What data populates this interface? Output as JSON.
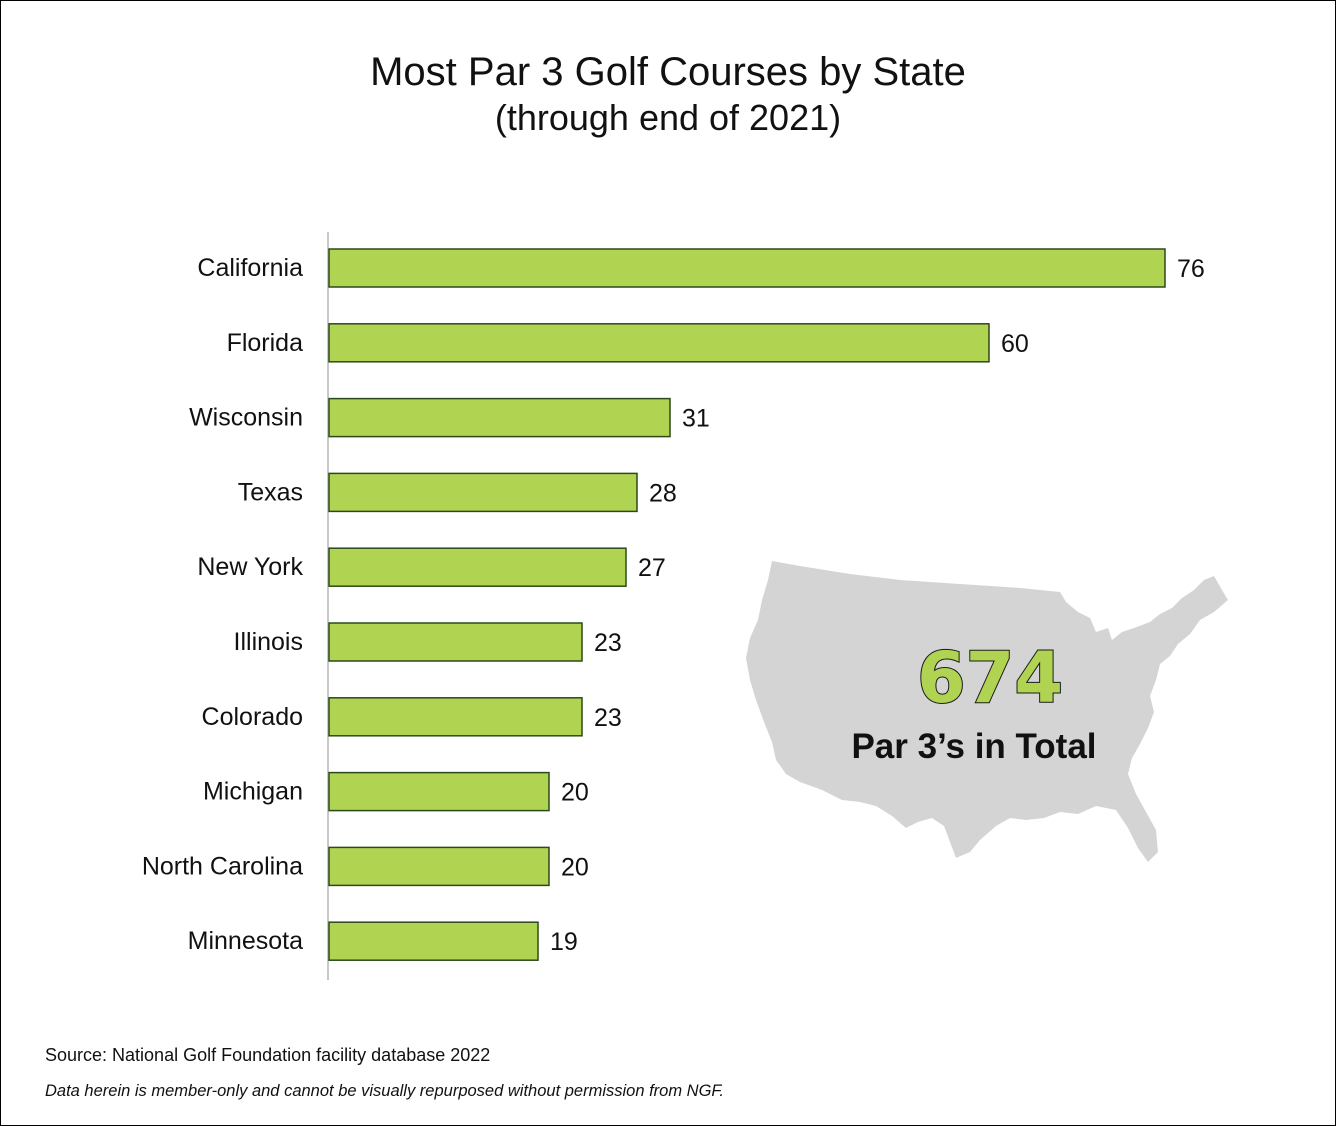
{
  "chart_data": {
    "type": "bar",
    "orientation": "horizontal",
    "title": "Most Par 3 Golf Courses by State",
    "subtitle": "(through end of 2021)",
    "categories": [
      "California",
      "Florida",
      "Wisconsin",
      "Texas",
      "New York",
      "Illinois",
      "Colorado",
      "Michigan",
      "North Carolina",
      "Minnesota"
    ],
    "values": [
      76,
      60,
      31,
      28,
      27,
      23,
      23,
      20,
      20,
      19
    ],
    "data_labels": true,
    "grid": false,
    "bar_color": "#b0d452",
    "bar_outline_color": "#2b4a1c",
    "callout": {
      "value": "674",
      "label": "Par 3’s in Total",
      "background": "map-of-united-states"
    }
  },
  "footer": {
    "source": "Source: National Golf Foundation facility database 2022",
    "disclaimer": "Data herein is member-only and cannot be visually repurposed without permission from NGF."
  }
}
